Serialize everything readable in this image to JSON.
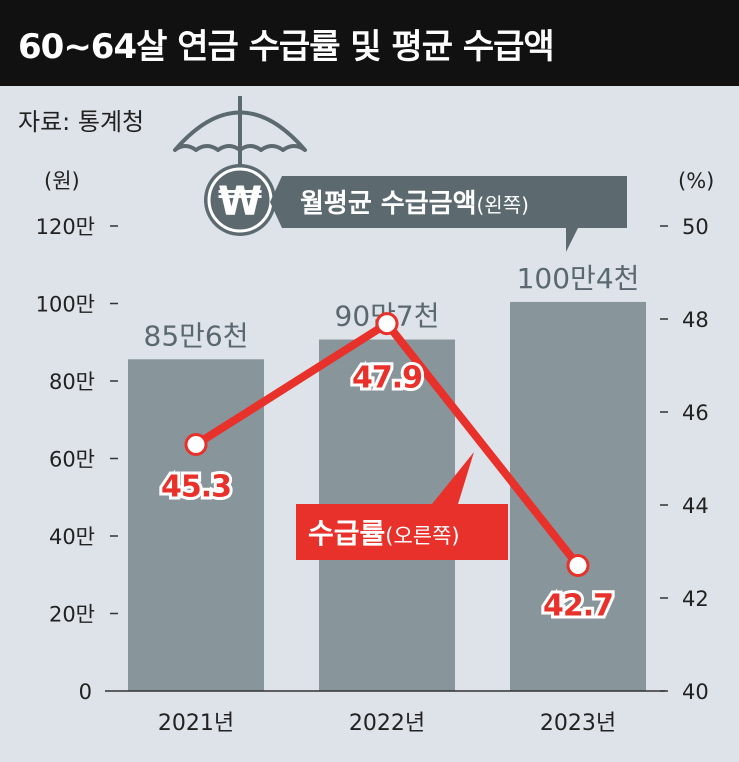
{
  "header": {
    "title": "60~64살 연금 수급률 및 평균 수급액",
    "source": "자료: 통계청"
  },
  "chart_data": {
    "type": "bar+line",
    "categories": [
      "2021년",
      "2022년",
      "2023년"
    ],
    "bar_series": {
      "name": "월평균 수급금액",
      "name_note": "(왼쪽)",
      "values": [
        856000,
        907000,
        1004000
      ],
      "labels": [
        "85만6천",
        "90만7천",
        "100만4천"
      ],
      "color": "#88959b"
    },
    "line_series": {
      "name": "수급률",
      "name_note": "(오른쪽)",
      "values": [
        45.3,
        47.9,
        42.7
      ],
      "labels": [
        "45.3",
        "47.9",
        "42.7"
      ],
      "color": "#e8312a"
    },
    "left_axis": {
      "unit": "(원)",
      "ylim": [
        0,
        1200000
      ],
      "ticks": [
        0,
        200000,
        400000,
        600000,
        800000,
        1000000,
        1200000
      ],
      "tick_labels": [
        "0",
        "20만",
        "40만",
        "60만",
        "80만",
        "100만",
        "120만"
      ]
    },
    "right_axis": {
      "unit": "(%)",
      "ylim": [
        40,
        50
      ],
      "ticks": [
        40,
        42,
        44,
        46,
        48,
        50
      ],
      "tick_labels": [
        "40",
        "42",
        "44",
        "46",
        "48",
        "50"
      ]
    },
    "grid": false,
    "legend_placement": "inline-callouts"
  },
  "icons": {
    "umbrella": "umbrella-icon",
    "won": "won-coin-icon",
    "won_symbol": "₩"
  },
  "colors": {
    "background": "#dde3e8",
    "title_bg": "#111111",
    "bar": "#88959b",
    "line": "#e8312a",
    "legend_dark": "#5c6a70"
  }
}
